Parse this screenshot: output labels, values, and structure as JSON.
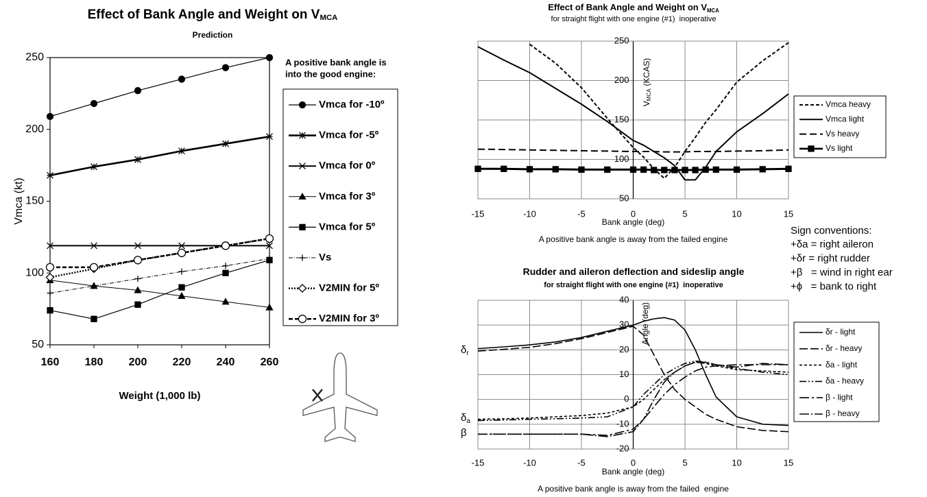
{
  "chart_data": [
    {
      "type": "line",
      "title": "Effect of Bank Angle and Weight on V",
      "title_subscript": "MCA",
      "subtitle": "Prediction",
      "ylabel": "Vmca (kt)",
      "xlabel": "Weight (1,000 lb)",
      "annotation": [
        "A positive bank angle is",
        "into the good engine:"
      ],
      "x": [
        160,
        180,
        200,
        220,
        240,
        260
      ],
      "xlim": [
        160,
        260
      ],
      "xticks": [
        160,
        180,
        200,
        220,
        240,
        260
      ],
      "ylim": [
        50,
        250
      ],
      "yticks": [
        50,
        100,
        150,
        200,
        250
      ],
      "grid": false,
      "series": [
        {
          "name": "Vmca for -10º",
          "color": "#000000",
          "width": 1.2,
          "marker": "circle",
          "values": [
            209,
            218,
            227,
            235,
            243,
            250
          ]
        },
        {
          "name": "Vmca for -5º",
          "color": "#000000",
          "width": 2.6,
          "marker": "asterisk",
          "values": [
            168,
            174,
            179,
            185,
            190,
            195
          ]
        },
        {
          "name": "Vmca for 0º",
          "color": "#000000",
          "width": 2,
          "marker": "x",
          "values": [
            119,
            119,
            119,
            119,
            119,
            119
          ]
        },
        {
          "name": "Vmca for 3º",
          "color": "#000000",
          "width": 1,
          "marker": "triangle",
          "values": [
            95,
            91,
            88,
            84,
            80,
            76
          ]
        },
        {
          "name": "Vmca for 5º",
          "color": "#000000",
          "width": 1.2,
          "marker": "square",
          "values": [
            74,
            68,
            78,
            90,
            100,
            109
          ]
        },
        {
          "name": "Vs",
          "color": "#000000",
          "width": 1,
          "dash": "6,2,1,2",
          "marker": "plus",
          "values": [
            86,
            91,
            96,
            101,
            105,
            110
          ]
        },
        {
          "name": "V2MIN for 5º",
          "color": "#000000",
          "width": 2.5,
          "dash": "2,2",
          "marker": "diamond",
          "values": [
            97,
            103,
            109,
            114,
            119,
            124
          ]
        },
        {
          "name": "V2MIN for 3º",
          "color": "#000000",
          "width": 2.5,
          "dash": "6,3",
          "marker": "open-circle",
          "values": [
            104,
            104,
            109,
            114,
            119,
            124
          ]
        }
      ]
    },
    {
      "type": "line",
      "title": "Effect of Bank Angle and Weight on V",
      "title_subscript": "MCA",
      "subtitle": "for straight flight with one engine (#1)  inoperative",
      "ylabel": "V",
      "ylabel_subscript": "MCA",
      "ylabel_unit": "(KCAS)",
      "xlabel": "Bank angle (deg)",
      "note": "A positive bank angle is away from the failed engine",
      "x": [
        -15,
        -12.5,
        -10,
        -7.5,
        -5,
        -2.5,
        0,
        1,
        2,
        3,
        4,
        5,
        6,
        7,
        8,
        10,
        12.5,
        15
      ],
      "xlim": [
        -15,
        15
      ],
      "xticks": [
        -15,
        -10,
        -5,
        0,
        5,
        10,
        15
      ],
      "ylim": [
        50,
        250
      ],
      "yticks": [
        50,
        100,
        150,
        200,
        250
      ],
      "grid": true,
      "y_axis_at_x": 0,
      "series": [
        {
          "name": "Vmca heavy",
          "color": "#000000",
          "width": 2,
          "dash": "5,3",
          "values": [
            null,
            null,
            246,
            222,
            191,
            152,
            115,
            103,
            88,
            76,
            90,
            110,
            128,
            147,
            163,
            198,
            225,
            248
          ]
        },
        {
          "name": "Vmca light",
          "color": "#000000",
          "width": 2,
          "values": [
            243,
            226,
            210,
            190,
            170,
            148,
            124,
            118,
            110,
            102,
            92,
            74,
            74,
            90,
            110,
            135,
            158,
            183
          ]
        },
        {
          "name": "Vs heavy",
          "color": "#000000",
          "width": 2,
          "dash": "10,5",
          "values": [
            113,
            112.5,
            112,
            111.5,
            111,
            110.5,
            110,
            110,
            110,
            109.5,
            109.5,
            109.5,
            110,
            110,
            110,
            110.5,
            111,
            112
          ]
        },
        {
          "name": "Vs light",
          "color": "#000000",
          "width": 3,
          "marker": "square",
          "values": [
            88,
            88,
            87.5,
            87.5,
            87,
            87,
            87,
            87,
            86.5,
            86.5,
            86.5,
            86.5,
            86.5,
            87,
            87,
            87,
            87.5,
            88
          ]
        }
      ]
    },
    {
      "type": "line",
      "title": "Rudder and aileron deflection and sideslip angle",
      "subtitle": "for straight flight with one engine (#1)  inoperative",
      "ylabel": "Angle (deg)",
      "xlabel": "Bank angle (deg)",
      "note": "A positive bank angle is away from the failed  engine",
      "annotations": [
        {
          "symbol": "δ",
          "subscript": "r"
        },
        {
          "symbol": "δ",
          "subscript": "a"
        },
        {
          "symbol": "β"
        }
      ],
      "x": [
        -15,
        -12.5,
        -10,
        -7.5,
        -5,
        -2.5,
        0,
        1,
        2,
        3,
        4,
        5,
        6,
        7,
        8,
        10,
        12.5,
        15
      ],
      "xlim": [
        -15,
        15
      ],
      "xticks": [
        -15,
        -10,
        -5,
        0,
        5,
        10,
        15
      ],
      "ylim": [
        -20,
        40
      ],
      "yticks": [
        -20,
        -10,
        0,
        10,
        20,
        30,
        40
      ],
      "grid": true,
      "y_axis_at_x": 0,
      "series": [
        {
          "name": "δr - light",
          "color": "#000000",
          "width": 1.6,
          "values": [
            20.5,
            21.2,
            22,
            23.2,
            25,
            27.5,
            30,
            31.5,
            32.5,
            33,
            32,
            28,
            20,
            10,
            1,
            -7,
            -10,
            -10.5
          ]
        },
        {
          "name": "δr - heavy",
          "color": "#000000",
          "width": 1.6,
          "dash": "12,4",
          "values": [
            19.5,
            20.2,
            21,
            22.5,
            24.5,
            27,
            29.5,
            26,
            18,
            10,
            4,
            0,
            -3,
            -6,
            -8,
            -11,
            -12.5,
            -13
          ]
        },
        {
          "name": "δa - light",
          "color": "#000000",
          "width": 1.6,
          "dash": "4,3",
          "values": [
            -8,
            -7.8,
            -7.5,
            -7,
            -6.5,
            -5.5,
            -3,
            0,
            4,
            8,
            11,
            13.5,
            15,
            14.5,
            13.5,
            12,
            11.5,
            11
          ]
        },
        {
          "name": "δa - heavy",
          "color": "#000000",
          "width": 1.6,
          "dash": "10,3,2,3,2,3",
          "values": [
            -8.5,
            -8.3,
            -8,
            -7.8,
            -7.5,
            -7,
            -3,
            2,
            6,
            10,
            12.5,
            14.5,
            15.5,
            15,
            14,
            12.5,
            11,
            10
          ]
        },
        {
          "name": "β - light",
          "color": "#000000",
          "width": 1.6,
          "dash": "14,4,3,4",
          "values": [
            -14,
            -14,
            -14,
            -14,
            -14,
            -14.5,
            -12,
            -8,
            -3,
            2,
            6,
            9,
            11.5,
            13,
            13.5,
            14,
            14,
            14
          ]
        },
        {
          "name": "β - heavy",
          "color": "#000000",
          "width": 1.6,
          "dash": "14,3,2,3",
          "values": [
            -14,
            -14,
            -14,
            -14,
            -14,
            -15,
            -13,
            -8,
            0,
            7,
            11,
            13.5,
            15,
            15,
            14,
            13,
            14.5,
            14
          ]
        }
      ]
    }
  ],
  "sign_conventions": {
    "title": "Sign conventions:",
    "lines": [
      "+δa = right aileron",
      "+δr = right rudder",
      "+β   = wind in right ear",
      "+ϕ   = bank to right"
    ]
  }
}
